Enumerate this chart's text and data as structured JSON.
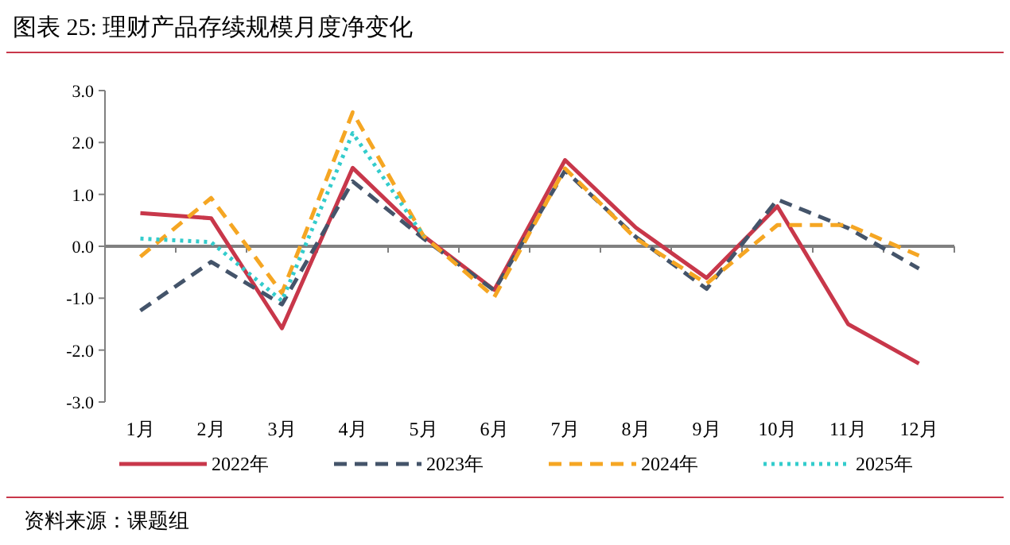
{
  "chart_data": {
    "type": "line",
    "title": "图表 25: 理财产品存续规模月度净变化",
    "categories": [
      "1月",
      "2月",
      "3月",
      "4月",
      "5月",
      "6月",
      "7月",
      "8月",
      "9月",
      "10月",
      "11月",
      "12月"
    ],
    "series": [
      {
        "name": "2022年",
        "color": "#c8374a",
        "line_style": "solid",
        "values": [
          0.64,
          0.54,
          -1.58,
          1.51,
          0.2,
          -0.84,
          1.66,
          0.36,
          -0.61,
          0.77,
          -1.5,
          -2.26
        ]
      },
      {
        "name": "2023年",
        "color": "#44546a",
        "line_style": "dashed",
        "values": [
          -1.24,
          -0.3,
          -1.12,
          1.25,
          0.15,
          -0.85,
          1.46,
          0.18,
          -0.82,
          0.9,
          0.35,
          -0.43
        ]
      },
      {
        "name": "2024年",
        "color": "#f5a623",
        "line_style": "dashed",
        "values": [
          -0.2,
          0.93,
          -0.9,
          2.58,
          0.2,
          -0.98,
          1.5,
          0.15,
          -0.72,
          0.41,
          0.41,
          -0.18
        ]
      },
      {
        "name": "2025年",
        "color": "#33cccc",
        "line_style": "dotted",
        "values": [
          0.15,
          0.08,
          -1.05,
          2.18,
          0.2,
          null,
          null,
          null,
          null,
          null,
          null,
          null
        ]
      }
    ],
    "ylim": [
      -3,
      3
    ],
    "yticks": [
      {
        "value": -3,
        "label": "-3.0"
      },
      {
        "value": -2,
        "label": "-2.0"
      },
      {
        "value": -1,
        "label": "-1.0"
      },
      {
        "value": 0,
        "label": "0.0"
      },
      {
        "value": 1,
        "label": "1.0"
      },
      {
        "value": 2,
        "label": "2.0"
      },
      {
        "value": 3,
        "label": "3.0"
      }
    ],
    "legend": "bottom",
    "annotations": [
      "资料来源：课题组"
    ]
  }
}
